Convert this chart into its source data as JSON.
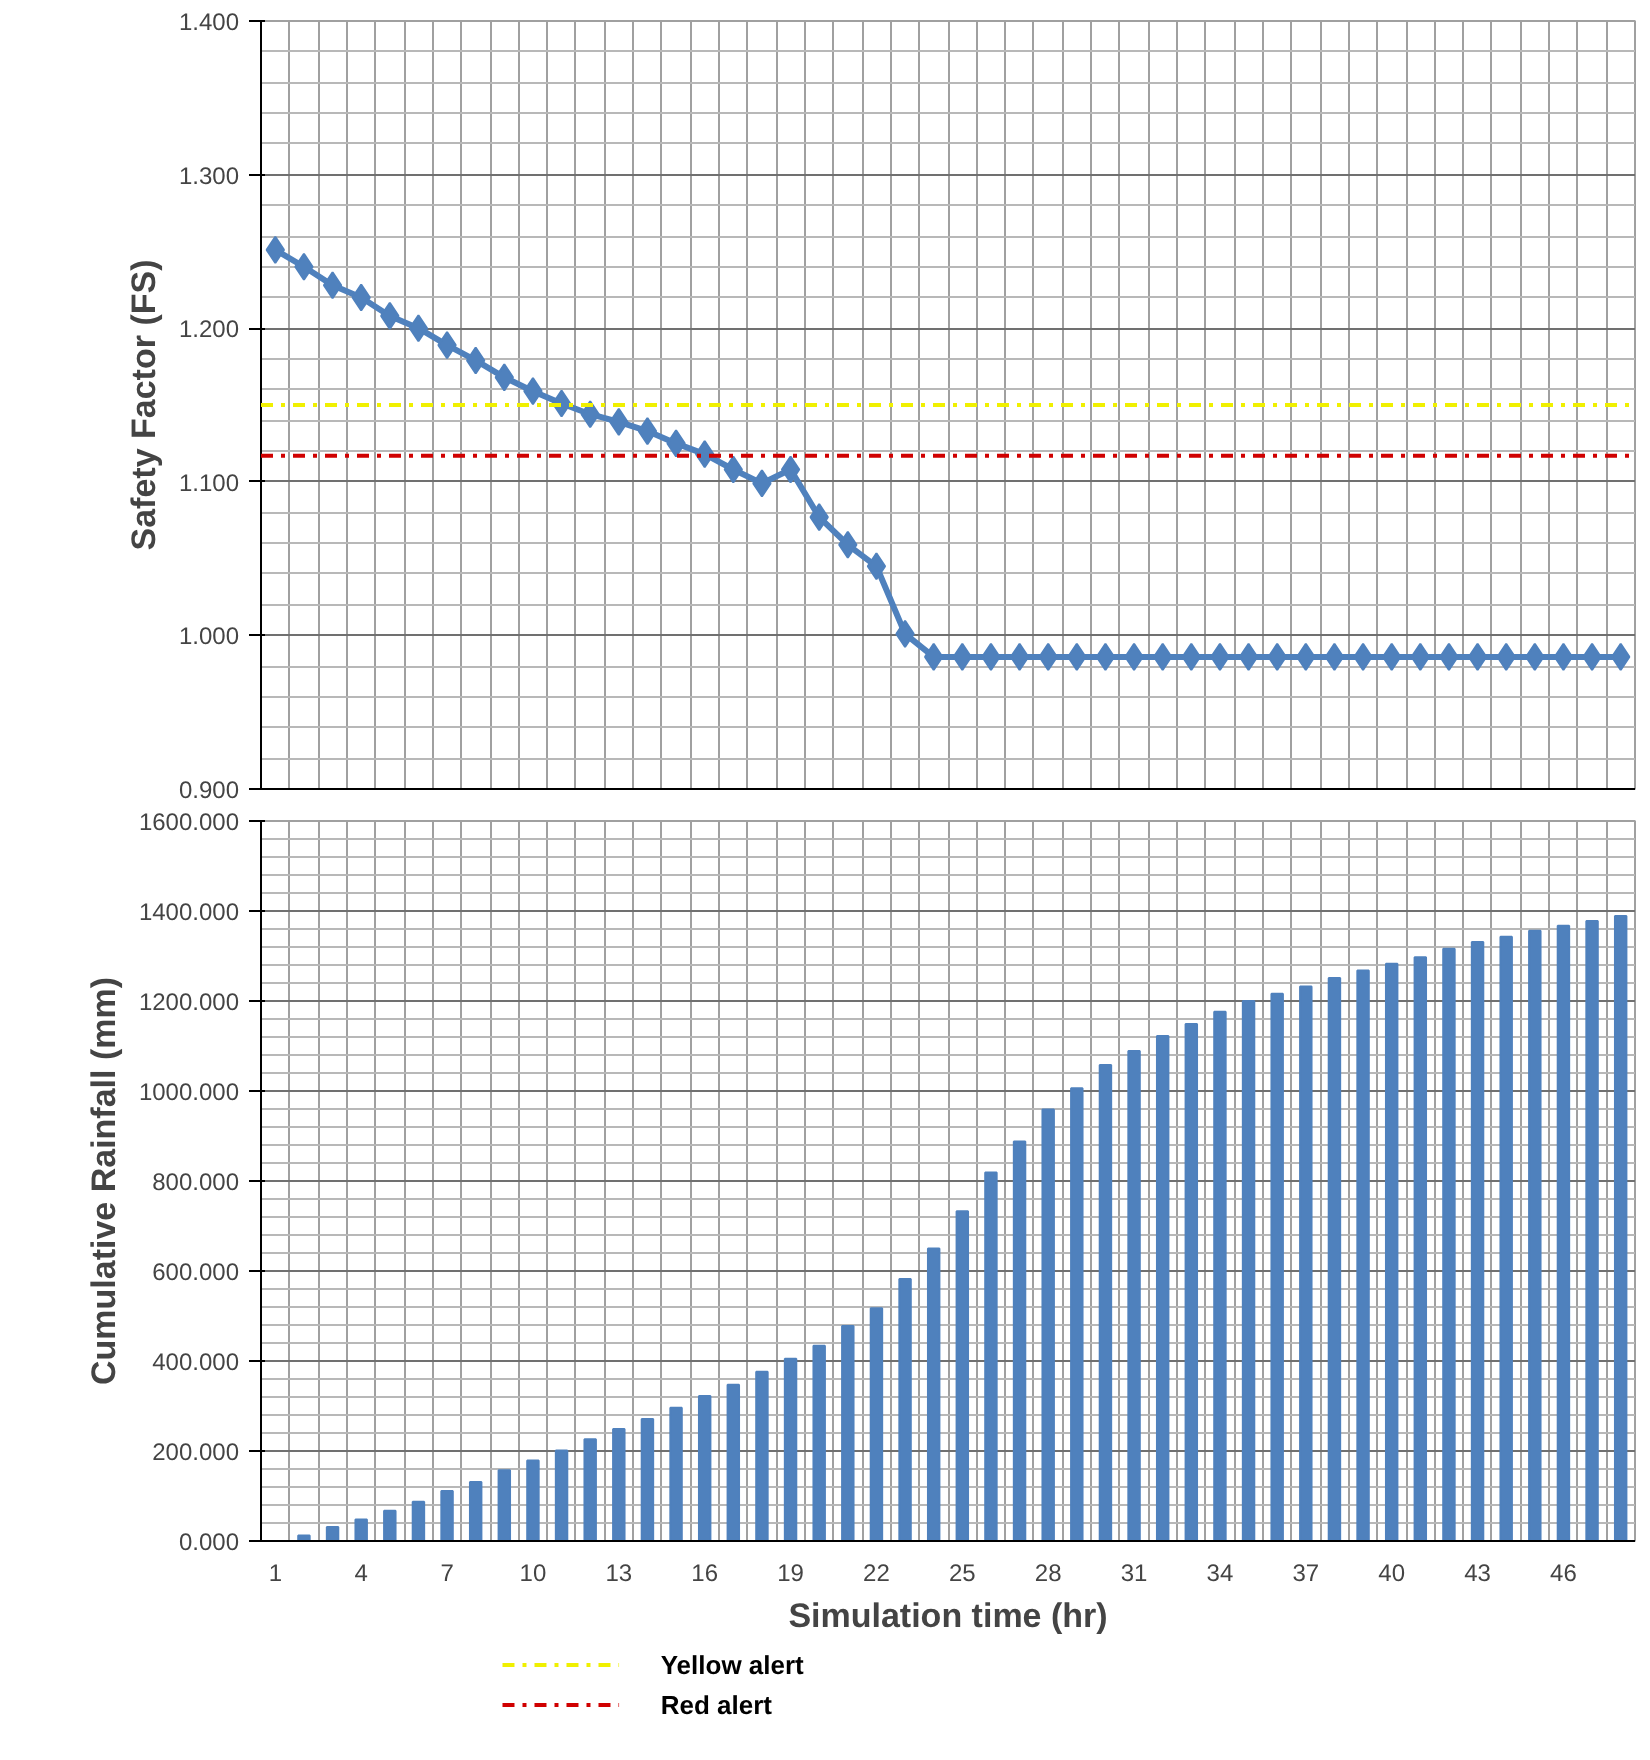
{
  "chart_data": [
    {
      "type": "line",
      "ylabel": "Safety Factor (FS)",
      "categories": [
        "1",
        null,
        null,
        "4",
        null,
        null,
        "7",
        null,
        null,
        "10",
        null,
        null,
        "13",
        null,
        null,
        "16",
        null,
        null,
        "19",
        null,
        null,
        "22",
        null,
        null,
        "25",
        null,
        null,
        "28",
        null,
        null,
        "31",
        null,
        null,
        "34",
        null,
        null,
        "37",
        null,
        null,
        "40",
        null,
        null,
        "43",
        null,
        null,
        "46",
        null,
        null
      ],
      "series": [
        {
          "color": "#4f81bd",
          "values": [
            1.251,
            1.24,
            1.228,
            1.22,
            1.208,
            1.2,
            1.189,
            1.179,
            1.168,
            1.159,
            1.151,
            1.144,
            1.139,
            1.133,
            1.125,
            1.118,
            1.108,
            1.099,
            1.108,
            1.077,
            1.059,
            1.045,
            1.001,
            0.986,
            0.986,
            0.986,
            0.986,
            0.986,
            0.986,
            0.986,
            0.986,
            0.986,
            0.986,
            0.986,
            0.986,
            0.986,
            0.986,
            0.986,
            0.986,
            0.986,
            0.986,
            0.986,
            0.986,
            0.986,
            0.986,
            0.986,
            0.986,
            0.986
          ]
        }
      ],
      "marker": "diamond",
      "line_style": "solid",
      "ylim": [
        0.9,
        1.4
      ],
      "yticks": [
        {
          "value": 0.9,
          "label": "0.900"
        },
        {
          "value": 1.0,
          "label": "1.000"
        },
        {
          "value": 1.1,
          "label": "1.100"
        },
        {
          "value": 1.2,
          "label": "1.200"
        },
        {
          "value": 1.3,
          "label": "1.300"
        },
        {
          "value": 1.4,
          "label": "1.400"
        }
      ],
      "ref_lines": [
        {
          "axis": "y",
          "value": 1.15,
          "label": "Yellow alert",
          "color": "#f0f000",
          "line_style": "dashdot"
        },
        {
          "axis": "y",
          "value": 1.117,
          "label": "Red alert",
          "color": "#d00000",
          "line_style": "dashdot"
        }
      ],
      "grid": true,
      "tick_labels": "y",
      "legend": "bottom left"
    },
    {
      "type": "bar",
      "xlabel": "Simulation time (hr)",
      "ylabel": "Cumulative Rainfall (mm)",
      "categories": [
        "1",
        null,
        null,
        "4",
        null,
        null,
        "7",
        null,
        null,
        "10",
        null,
        null,
        "13",
        null,
        null,
        "16",
        null,
        null,
        "19",
        null,
        null,
        "22",
        null,
        null,
        "25",
        null,
        null,
        "28",
        null,
        null,
        "31",
        null,
        null,
        "34",
        null,
        null,
        "37",
        null,
        null,
        "40",
        null,
        null,
        "43",
        null,
        null,
        "46",
        null,
        null
      ],
      "series": [
        {
          "color": "#4f81bd",
          "values": [
            0,
            12,
            31,
            48,
            67,
            87,
            111,
            131,
            157,
            179,
            201,
            226,
            249,
            271,
            296,
            322,
            347,
            376,
            405,
            434,
            478,
            517,
            582,
            650,
            733,
            819,
            888,
            959,
            1006,
            1058,
            1089,
            1122,
            1149,
            1176,
            1200,
            1216,
            1232,
            1251,
            1268,
            1283,
            1297,
            1316,
            1331,
            1343,
            1356,
            1367,
            1378,
            1389
          ]
        }
      ],
      "ylim": [
        0,
        1600
      ],
      "yticks": [
        {
          "value": 0,
          "label": "0.000"
        },
        {
          "value": 200,
          "label": "200.000"
        },
        {
          "value": 400,
          "label": "400.000"
        },
        {
          "value": 600,
          "label": "600.000"
        },
        {
          "value": 800,
          "label": "800.000"
        },
        {
          "value": 1000,
          "label": "1000.000"
        },
        {
          "value": 1200,
          "label": "1200.000"
        },
        {
          "value": 1400,
          "label": "1400.000"
        },
        {
          "value": 1600,
          "label": "1600.000"
        }
      ],
      "grid": true
    }
  ]
}
